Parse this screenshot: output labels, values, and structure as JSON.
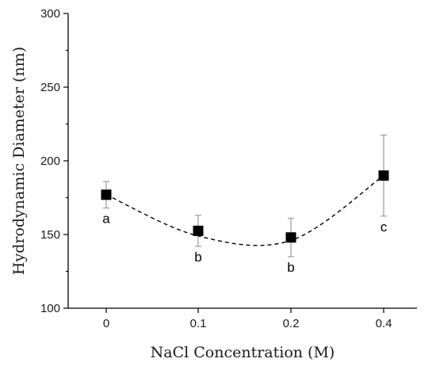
{
  "chart_data": {
    "type": "scatter",
    "xlabel": "NaCl Concentration (M)",
    "ylabel": "Hydrodynamic Diameter (nm)",
    "ylim": [
      100,
      300
    ],
    "yticks": [
      100,
      150,
      200,
      250,
      300
    ],
    "categories": [
      "0",
      "0.1",
      "0.2",
      "0.4"
    ],
    "series": [
      {
        "values": [
          177,
          152.5,
          148,
          190
        ],
        "error": [
          9,
          10.5,
          13,
          27.5
        ],
        "labels": [
          "a",
          "b",
          "b",
          "c"
        ]
      }
    ],
    "trend_line": {
      "style": "dashed",
      "x_values": [
        0,
        0.1,
        0.2,
        0.4
      ],
      "y_values": [
        177,
        149,
        146,
        190
      ]
    },
    "colors": {
      "marker": "#000000",
      "error_bar": "#9a9a9a",
      "trend_line": "#000000"
    },
    "grid": false,
    "legend": "none"
  }
}
